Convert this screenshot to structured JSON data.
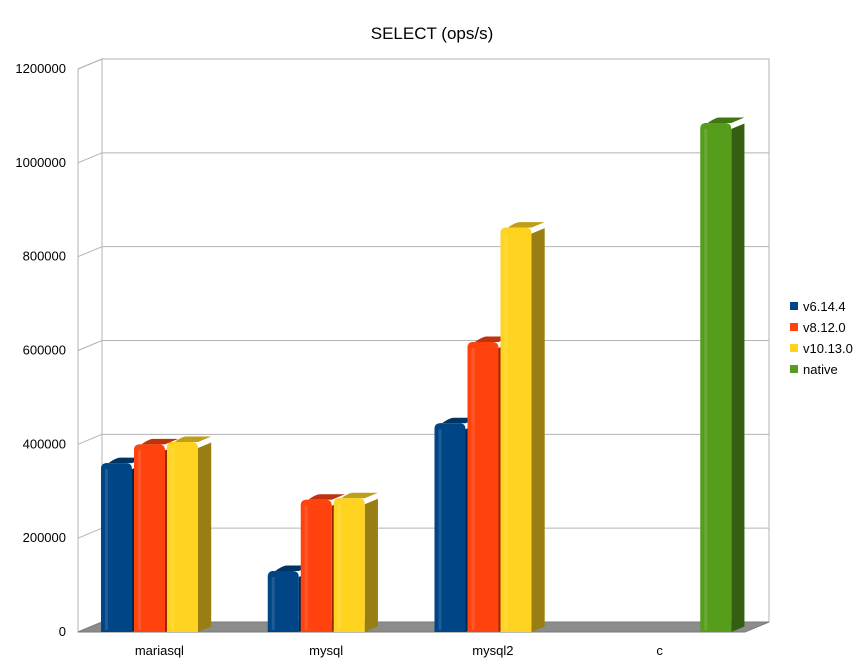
{
  "chart_data": {
    "type": "bar",
    "title": "SELECT (ops/s)",
    "xlabel": "",
    "ylabel": "",
    "categories": [
      "mariasql",
      "mysql",
      "mysql2",
      "c"
    ],
    "series": [
      {
        "name": "v6.14.4",
        "color": "#004586",
        "values": [
          360000,
          130000,
          445000,
          null
        ]
      },
      {
        "name": "v8.12.0",
        "color": "#ff420e",
        "values": [
          400000,
          282000,
          618000,
          null
        ]
      },
      {
        "name": "v10.13.0",
        "color": "#ffd320",
        "values": [
          405000,
          285000,
          862000,
          null
        ]
      },
      {
        "name": "native",
        "color": "#579d1c",
        "values": [
          null,
          null,
          null,
          1085000
        ]
      }
    ],
    "ylim": [
      0,
      1200000
    ],
    "yticks": [
      "0",
      "200000",
      "400000",
      "600000",
      "800000",
      "1000000",
      "1200000"
    ],
    "grid": true,
    "three_d": true,
    "legend_position": "right"
  }
}
